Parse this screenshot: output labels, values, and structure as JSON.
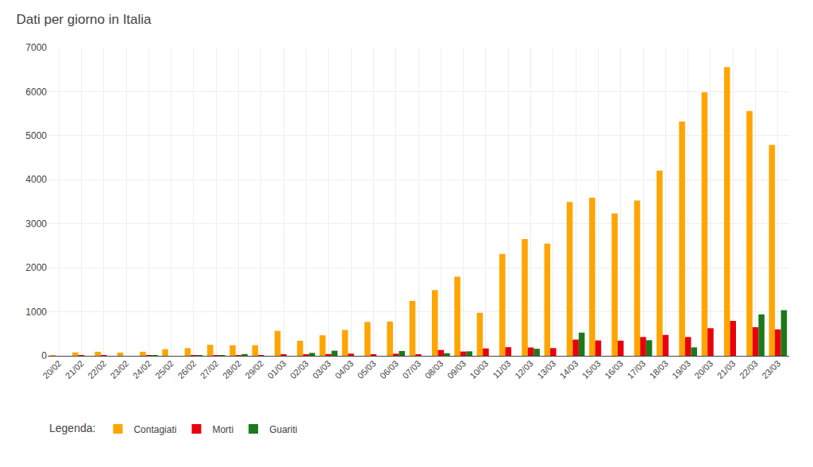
{
  "chart_data": {
    "type": "bar",
    "title": "Dati per giorno in Italia",
    "categories": [
      "20/02",
      "21/02",
      "22/02",
      "23/02",
      "24/02",
      "25/02",
      "26/02",
      "27/02",
      "28/02",
      "29/02",
      "01/03",
      "02/03",
      "03/03",
      "04/03",
      "05/03",
      "06/03",
      "07/03",
      "08/03",
      "09/03",
      "10/03",
      "11/03",
      "12/03",
      "13/03",
      "14/03",
      "15/03",
      "16/03",
      "17/03",
      "18/03",
      "19/03",
      "20/03",
      "21/03",
      "22/03",
      "23/03"
    ],
    "series": [
      {
        "name": "Contagiati",
        "color": "#FFA500",
        "values": [
          3,
          78,
          93,
          74,
          93,
          150,
          175,
          250,
          240,
          240,
          566,
          342,
          466,
          587,
          769,
          778,
          1247,
          1492,
          1797,
          977,
          2313,
          2651,
          2547,
          3497,
          3590,
          3233,
          3526,
          4207,
          5322,
          5986,
          6557,
          5560,
          4789
        ]
      },
      {
        "name": "Morti",
        "color": "#e8000d",
        "values": [
          0,
          1,
          1,
          0,
          4,
          0,
          3,
          5,
          8,
          4,
          27,
          28,
          41,
          49,
          36,
          48,
          36,
          133,
          97,
          168,
          196,
          189,
          175,
          368,
          349,
          345,
          427,
          475,
          427,
          627,
          793,
          651,
          601
        ]
      },
      {
        "name": "Guariti",
        "color": "#1a7a1a",
        "values": [
          0,
          0,
          0,
          0,
          1,
          0,
          3,
          1,
          40,
          0,
          0,
          66,
          116,
          0,
          0,
          109,
          0,
          60,
          102,
          0,
          0,
          160,
          0,
          527,
          0,
          0,
          355,
          0,
          192,
          0,
          0,
          940,
          1036
        ]
      }
    ],
    "annotations": [
      "Legenda:"
    ],
    "ylim": [
      0,
      7000
    ],
    "yticks": [
      0,
      1000,
      2000,
      3000,
      4000,
      5000,
      6000,
      7000
    ],
    "grid": true,
    "legend": "lower left"
  }
}
